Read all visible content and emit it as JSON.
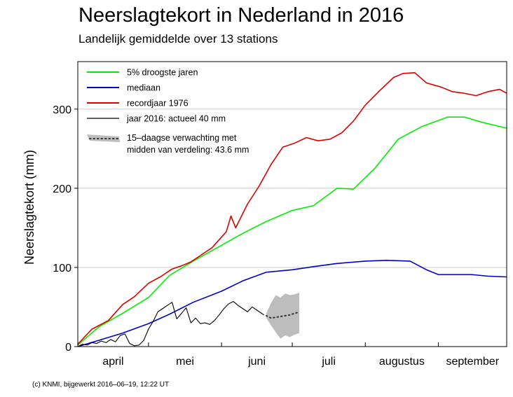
{
  "chart_data": {
    "type": "line",
    "title": "Neerslagtekort in Nederland in 2016",
    "subtitle": "Landelijk gemiddelde over 13 stations",
    "ylabel": "Neerslagtekort (mm)",
    "xlabel": "",
    "ylim": [
      0,
      360
    ],
    "xlim": [
      "2016-04-01",
      "2016-09-30"
    ],
    "yticks": [
      0,
      100,
      200,
      300
    ],
    "xtick_labels": [
      "april",
      "mei",
      "juni",
      "juli",
      "augustus",
      "september"
    ],
    "month_starts": [
      "2016-04-01",
      "2016-05-01",
      "2016-06-01",
      "2016-07-01",
      "2016-08-01",
      "2016-09-01"
    ],
    "grid": "horizontal",
    "legend": "top-left",
    "series": [
      {
        "name": "5% droogste jaren",
        "color": "#00ee00",
        "x": [
          "2016-04-01",
          "2016-04-10",
          "2016-04-20",
          "2016-05-01",
          "2016-05-10",
          "2016-05-20",
          "2016-06-01",
          "2016-06-10",
          "2016-06-20",
          "2016-07-01",
          "2016-07-10",
          "2016-07-20",
          "2016-07-27",
          "2016-08-05",
          "2016-08-15",
          "2016-08-25",
          "2016-09-05",
          "2016-09-12",
          "2016-09-20",
          "2016-09-30"
        ],
        "y": [
          2,
          25,
          42,
          62,
          90,
          108,
          128,
          143,
          158,
          172,
          178,
          200,
          199,
          225,
          262,
          278,
          290,
          290,
          283,
          276
        ]
      },
      {
        "name": "mediaan",
        "color": "#0000cc",
        "x": [
          "2016-04-01",
          "2016-04-10",
          "2016-04-20",
          "2016-05-01",
          "2016-05-10",
          "2016-05-20",
          "2016-06-01",
          "2016-06-10",
          "2016-06-20",
          "2016-07-01",
          "2016-07-10",
          "2016-07-20",
          "2016-08-01",
          "2016-08-10",
          "2016-08-20",
          "2016-08-27",
          "2016-09-01",
          "2016-09-07",
          "2016-09-15",
          "2016-09-22",
          "2016-09-30"
        ],
        "y": [
          0,
          8,
          17,
          29,
          41,
          56,
          70,
          83,
          94,
          97,
          101,
          105,
          108,
          109,
          108,
          97,
          91,
          91,
          91,
          89,
          88
        ]
      },
      {
        "name": "recordjaar 1976",
        "color": "#dd0000",
        "x": [
          "2016-04-01",
          "2016-04-07",
          "2016-04-14",
          "2016-04-20",
          "2016-04-25",
          "2016-05-01",
          "2016-05-06",
          "2016-05-11",
          "2016-05-15",
          "2016-05-19",
          "2016-05-23",
          "2016-05-28",
          "2016-06-03",
          "2016-06-05",
          "2016-06-07",
          "2016-06-12",
          "2016-06-17",
          "2016-06-22",
          "2016-06-27",
          "2016-07-02",
          "2016-07-07",
          "2016-07-12",
          "2016-07-17",
          "2016-07-22",
          "2016-07-27",
          "2016-08-01",
          "2016-08-07",
          "2016-08-13",
          "2016-08-17",
          "2016-08-22",
          "2016-08-27",
          "2016-09-02",
          "2016-09-07",
          "2016-09-12",
          "2016-09-17",
          "2016-09-22",
          "2016-09-27",
          "2016-09-30"
        ],
        "y": [
          3,
          22,
          33,
          53,
          63,
          80,
          88,
          98,
          102,
          107,
          115,
          125,
          145,
          165,
          150,
          180,
          203,
          230,
          252,
          257,
          264,
          260,
          262,
          270,
          285,
          305,
          323,
          340,
          345,
          346,
          333,
          328,
          322,
          320,
          317,
          322,
          325,
          320
        ]
      },
      {
        "name": "jaar 2016: actueel 40 mm",
        "color": "#000000",
        "x": [
          "2016-04-01",
          "2016-04-03",
          "2016-04-05",
          "2016-04-07",
          "2016-04-09",
          "2016-04-11",
          "2016-04-13",
          "2016-04-15",
          "2016-04-17",
          "2016-04-19",
          "2016-04-21",
          "2016-04-23",
          "2016-04-25",
          "2016-04-27",
          "2016-04-29",
          "2016-05-01",
          "2016-05-03",
          "2016-05-05",
          "2016-05-07",
          "2016-05-09",
          "2016-05-11",
          "2016-05-13",
          "2016-05-15",
          "2016-05-17",
          "2016-05-19",
          "2016-05-21",
          "2016-05-23",
          "2016-05-25",
          "2016-05-27",
          "2016-05-29",
          "2016-05-31",
          "2016-06-02",
          "2016-06-04",
          "2016-06-06",
          "2016-06-08",
          "2016-06-10",
          "2016-06-12",
          "2016-06-14",
          "2016-06-16",
          "2016-06-18",
          "2016-06-19"
        ],
        "y": [
          0,
          3,
          2,
          5,
          4,
          7,
          5,
          9,
          6,
          14,
          16,
          4,
          1,
          2,
          8,
          22,
          32,
          44,
          48,
          52,
          56,
          35,
          42,
          49,
          30,
          36,
          29,
          30,
          28,
          33,
          40,
          48,
          54,
          57,
          52,
          48,
          44,
          50,
          46,
          42,
          40
        ]
      }
    ],
    "forecast": {
      "name": "15-daagse verwachting met midden van verdeling: 43.6 mm",
      "color": "#333333",
      "band_color": "#bdbdbd",
      "x": [
        "2016-06-20",
        "2016-06-22",
        "2016-06-24",
        "2016-06-26",
        "2016-06-28",
        "2016-06-30",
        "2016-07-02",
        "2016-07-04"
      ],
      "median": [
        39,
        36,
        37,
        38,
        39,
        40,
        42,
        43.6
      ],
      "low": [
        36,
        27,
        18,
        10,
        14,
        12,
        15,
        17
      ],
      "high": [
        42,
        55,
        65,
        62,
        67,
        65,
        66,
        68
      ]
    }
  },
  "legend_items": [
    {
      "label": "5% droogste jaren",
      "color": "#00ee00"
    },
    {
      "label": "mediaan",
      "color": "#0000cc"
    },
    {
      "label": "recordjaar 1976",
      "color": "#dd0000"
    },
    {
      "label": "jaar 2016: actueel 40 mm",
      "color": "#000000"
    }
  ],
  "forecast_legend": {
    "line1": "15–daagse verwachting met",
    "line2": "midden van verdeling: 43.6 mm"
  },
  "footer": "(c) KNMI, bijgewerkt 2016–06–19, 12:22 UT"
}
